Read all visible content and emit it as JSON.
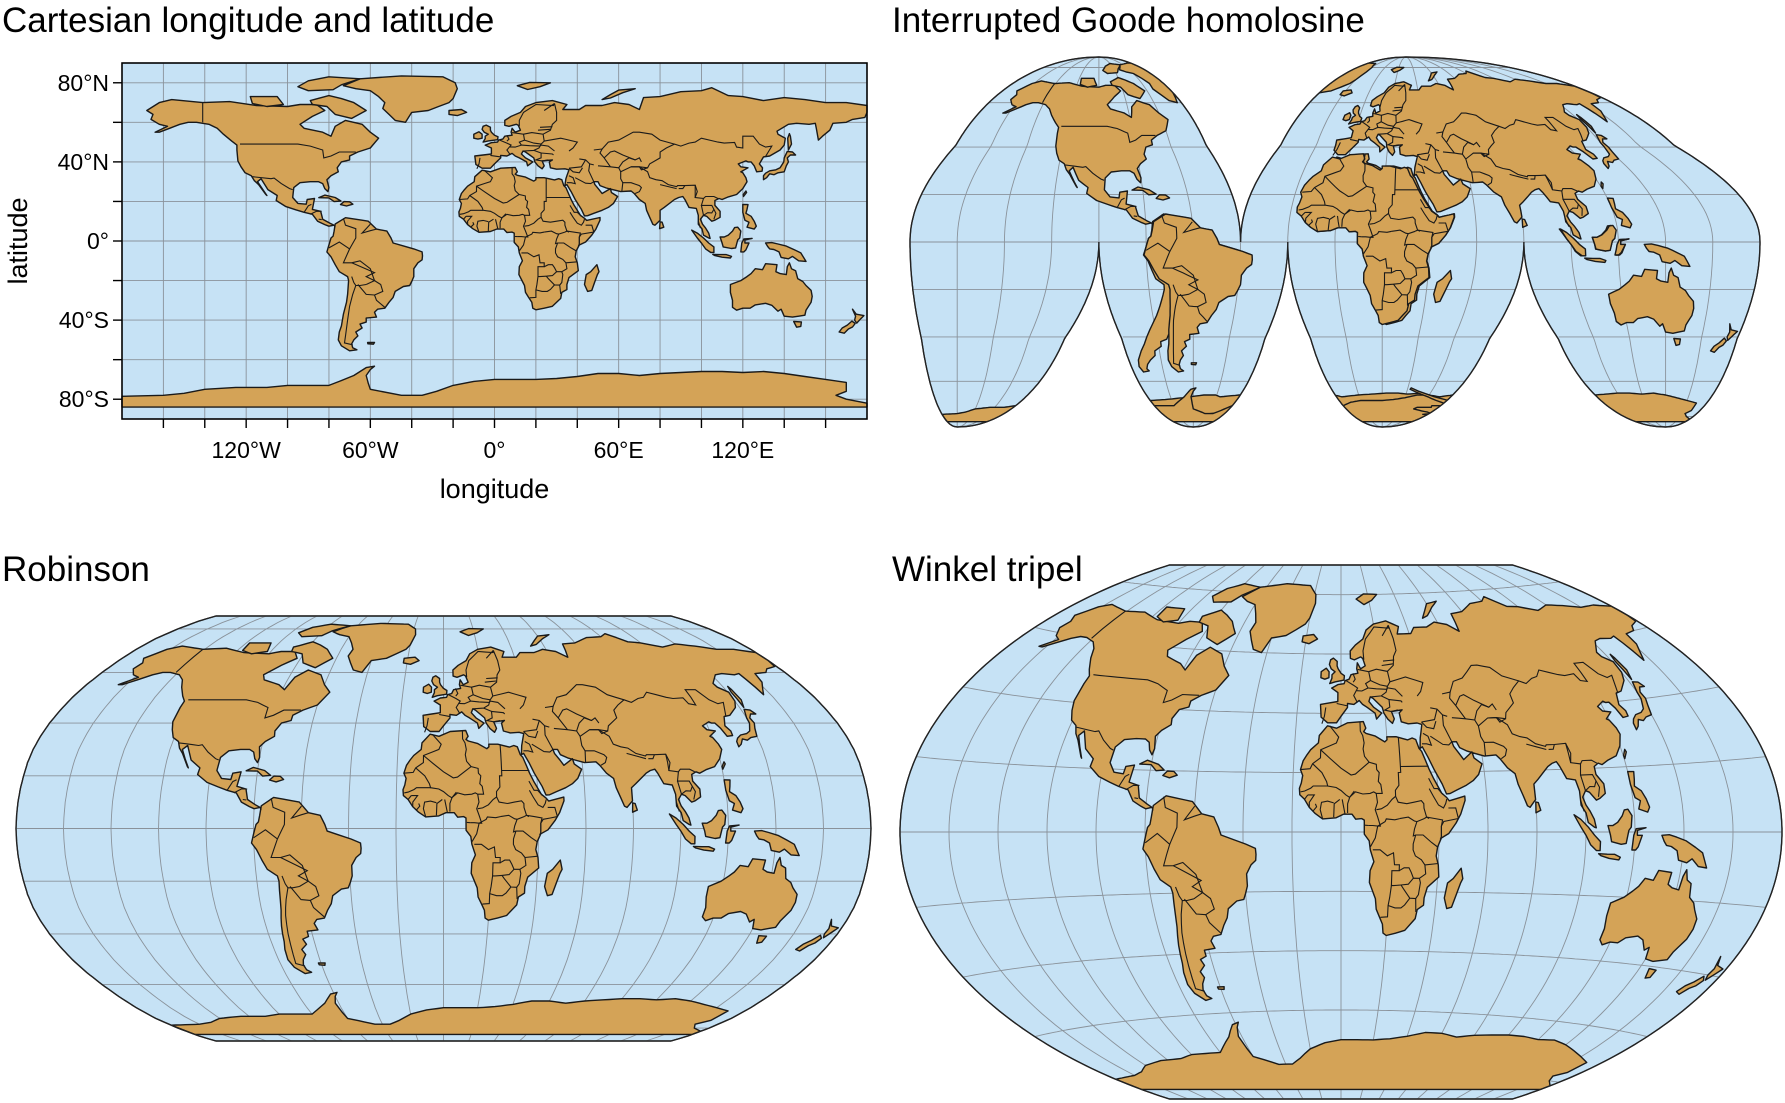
{
  "panels": {
    "cartesian": {
      "title": "Cartesian longitude and latitude",
      "xlabel": "longitude",
      "ylabel": "latitude",
      "xticks": [
        "120°W",
        "60°W",
        "0°",
        "60°E",
        "120°E"
      ],
      "yticks": [
        "80°N",
        "40°N",
        "0°",
        "40°S",
        "80°S"
      ]
    },
    "goode": {
      "title": "Interrupted Goode homolosine"
    },
    "robinson": {
      "title": "Robinson"
    },
    "winkel": {
      "title": "Winkel tripel"
    }
  },
  "colors": {
    "ocean": "#c6e2f5",
    "land": "#d4a357",
    "graticule": "#8a929a",
    "outline": "#1a1a1a"
  },
  "chart_data": [
    {
      "type": "map",
      "projection": "equirectangular",
      "graticule_step_deg": 20,
      "xlim": [
        -180,
        180
      ],
      "ylim": [
        -90,
        90
      ]
    },
    {
      "type": "map",
      "projection": "interrupted goode homolosine",
      "graticule_step_deg": 20
    },
    {
      "type": "map",
      "projection": "robinson",
      "graticule_step_deg": 20
    },
    {
      "type": "map",
      "projection": "winkel tripel",
      "graticule_step_deg": 20
    }
  ]
}
